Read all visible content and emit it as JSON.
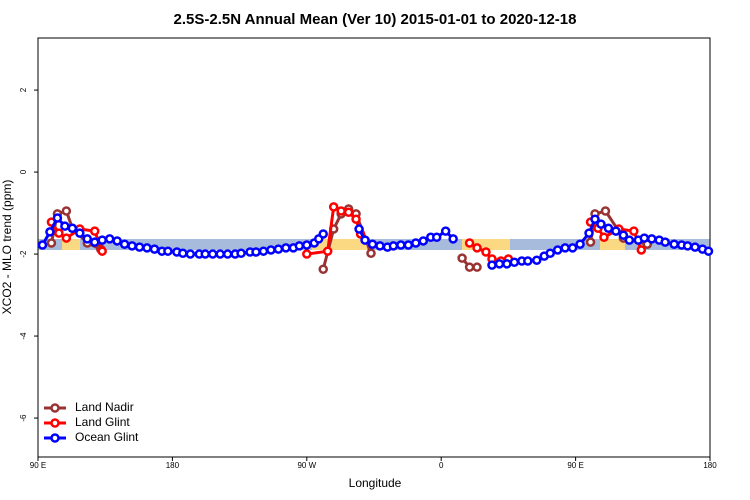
{
  "chart_data": {
    "type": "line",
    "title": "2.5S-2.5N Annual Mean (Ver 10)   2015-01-01 to 2020-12-18",
    "x_label": "Longitude",
    "y_label": "XCO2 - MLO trend (ppm)",
    "xlim": [
      90,
      540
    ],
    "ylim": [
      -6.95,
      3.27
    ],
    "xticks": [
      {
        "value": 90,
        "label": "90 E"
      },
      180,
      {
        "value": 270,
        "label": "90 W"
      },
      {
        "value": 360,
        "label": "0"
      },
      {
        "value": 450,
        "label": "90 E"
      },
      {
        "value": 540,
        "label": "180"
      }
    ],
    "yticks": [
      2,
      0,
      -2,
      -4,
      -6
    ],
    "legend": "bottom-left",
    "series": [
      {
        "name": "Land Nadir",
        "color": "#993333",
        "x": [
          99,
          103,
          109,
          113,
          123,
          132,
          250,
          281,
          288,
          293,
          298,
          303,
          313,
          340,
          374,
          379,
          384,
          420,
          460,
          463,
          470,
          482,
          498
        ],
        "values": [
          -1.73,
          -1.02,
          -0.95,
          -1.37,
          -1.73,
          -1.88,
          null,
          -2.37,
          -1.39,
          -1.02,
          -0.9,
          -1.02,
          -1.98,
          null,
          -2.1,
          -2.32,
          -2.32,
          null,
          -1.71,
          -1.02,
          -0.95,
          -1.61,
          -1.76
        ]
      },
      {
        "name": "Land Glint",
        "color": "#ff0000",
        "x": [
          99,
          104,
          109,
          118,
          128,
          133,
          250,
          270,
          284,
          288,
          293,
          298,
          303,
          306,
          340,
          379,
          384,
          390,
          394,
          400,
          405,
          420,
          460,
          465,
          469,
          479,
          489,
          494
        ],
        "values": [
          -1.22,
          -1.49,
          -1.61,
          -1.39,
          -1.44,
          -1.93,
          null,
          -2.0,
          -1.93,
          -0.85,
          -0.95,
          -0.98,
          -1.15,
          -1.51,
          null,
          -1.73,
          -1.85,
          -1.95,
          -2.12,
          -2.17,
          -2.12,
          null,
          -1.22,
          -1.37,
          -1.59,
          -1.39,
          -1.44,
          -1.9
        ]
      },
      {
        "name": "Ocean Glint",
        "color": "#0000ff",
        "x": [
          93,
          98,
          103,
          108,
          113,
          118,
          123,
          128,
          133,
          138,
          143,
          148,
          153,
          158,
          163,
          168,
          173,
          177,
          183,
          187,
          192,
          198,
          202,
          207,
          212,
          217,
          222,
          226,
          232,
          236,
          241,
          246,
          251,
          256,
          261,
          265,
          270,
          275,
          278,
          281,
          290,
          305,
          309,
          314,
          319,
          324,
          328,
          333,
          338,
          343,
          348,
          353,
          357,
          363,
          368,
          380,
          394,
          399,
          404,
          409,
          414,
          418,
          424,
          429,
          433,
          438,
          443,
          448,
          453,
          459,
          463,
          467,
          472,
          477,
          482,
          486,
          492,
          496,
          501,
          506,
          510,
          516,
          521,
          525,
          530,
          535,
          539
        ],
        "values": [
          -1.78,
          -1.46,
          -1.12,
          -1.32,
          -1.37,
          -1.49,
          -1.63,
          -1.71,
          -1.66,
          -1.63,
          -1.68,
          -1.76,
          -1.8,
          -1.83,
          -1.85,
          -1.88,
          -1.93,
          -1.93,
          -1.95,
          -1.98,
          -2,
          -2,
          -2,
          -2,
          -2,
          -2,
          -2,
          -1.98,
          -1.95,
          -1.95,
          -1.93,
          -1.9,
          -1.88,
          -1.85,
          -1.85,
          -1.8,
          -1.78,
          -1.73,
          -1.63,
          -1.51,
          null,
          -1.39,
          -1.66,
          -1.76,
          -1.8,
          -1.83,
          -1.8,
          -1.78,
          -1.78,
          -1.73,
          -1.68,
          -1.59,
          -1.59,
          -1.44,
          -1.63,
          null,
          -2.27,
          -2.24,
          -2.24,
          -2.2,
          -2.17,
          -2.17,
          -2.15,
          -2.05,
          -1.98,
          -1.9,
          -1.85,
          -1.85,
          -1.76,
          -1.49,
          -1.15,
          -1.27,
          -1.37,
          -1.44,
          -1.54,
          -1.66,
          -1.66,
          -1.61,
          -1.63,
          -1.66,
          -1.71,
          -1.76,
          -1.78,
          -1.8,
          -1.83,
          -1.88,
          -1.93
        ]
      }
    ]
  }
}
